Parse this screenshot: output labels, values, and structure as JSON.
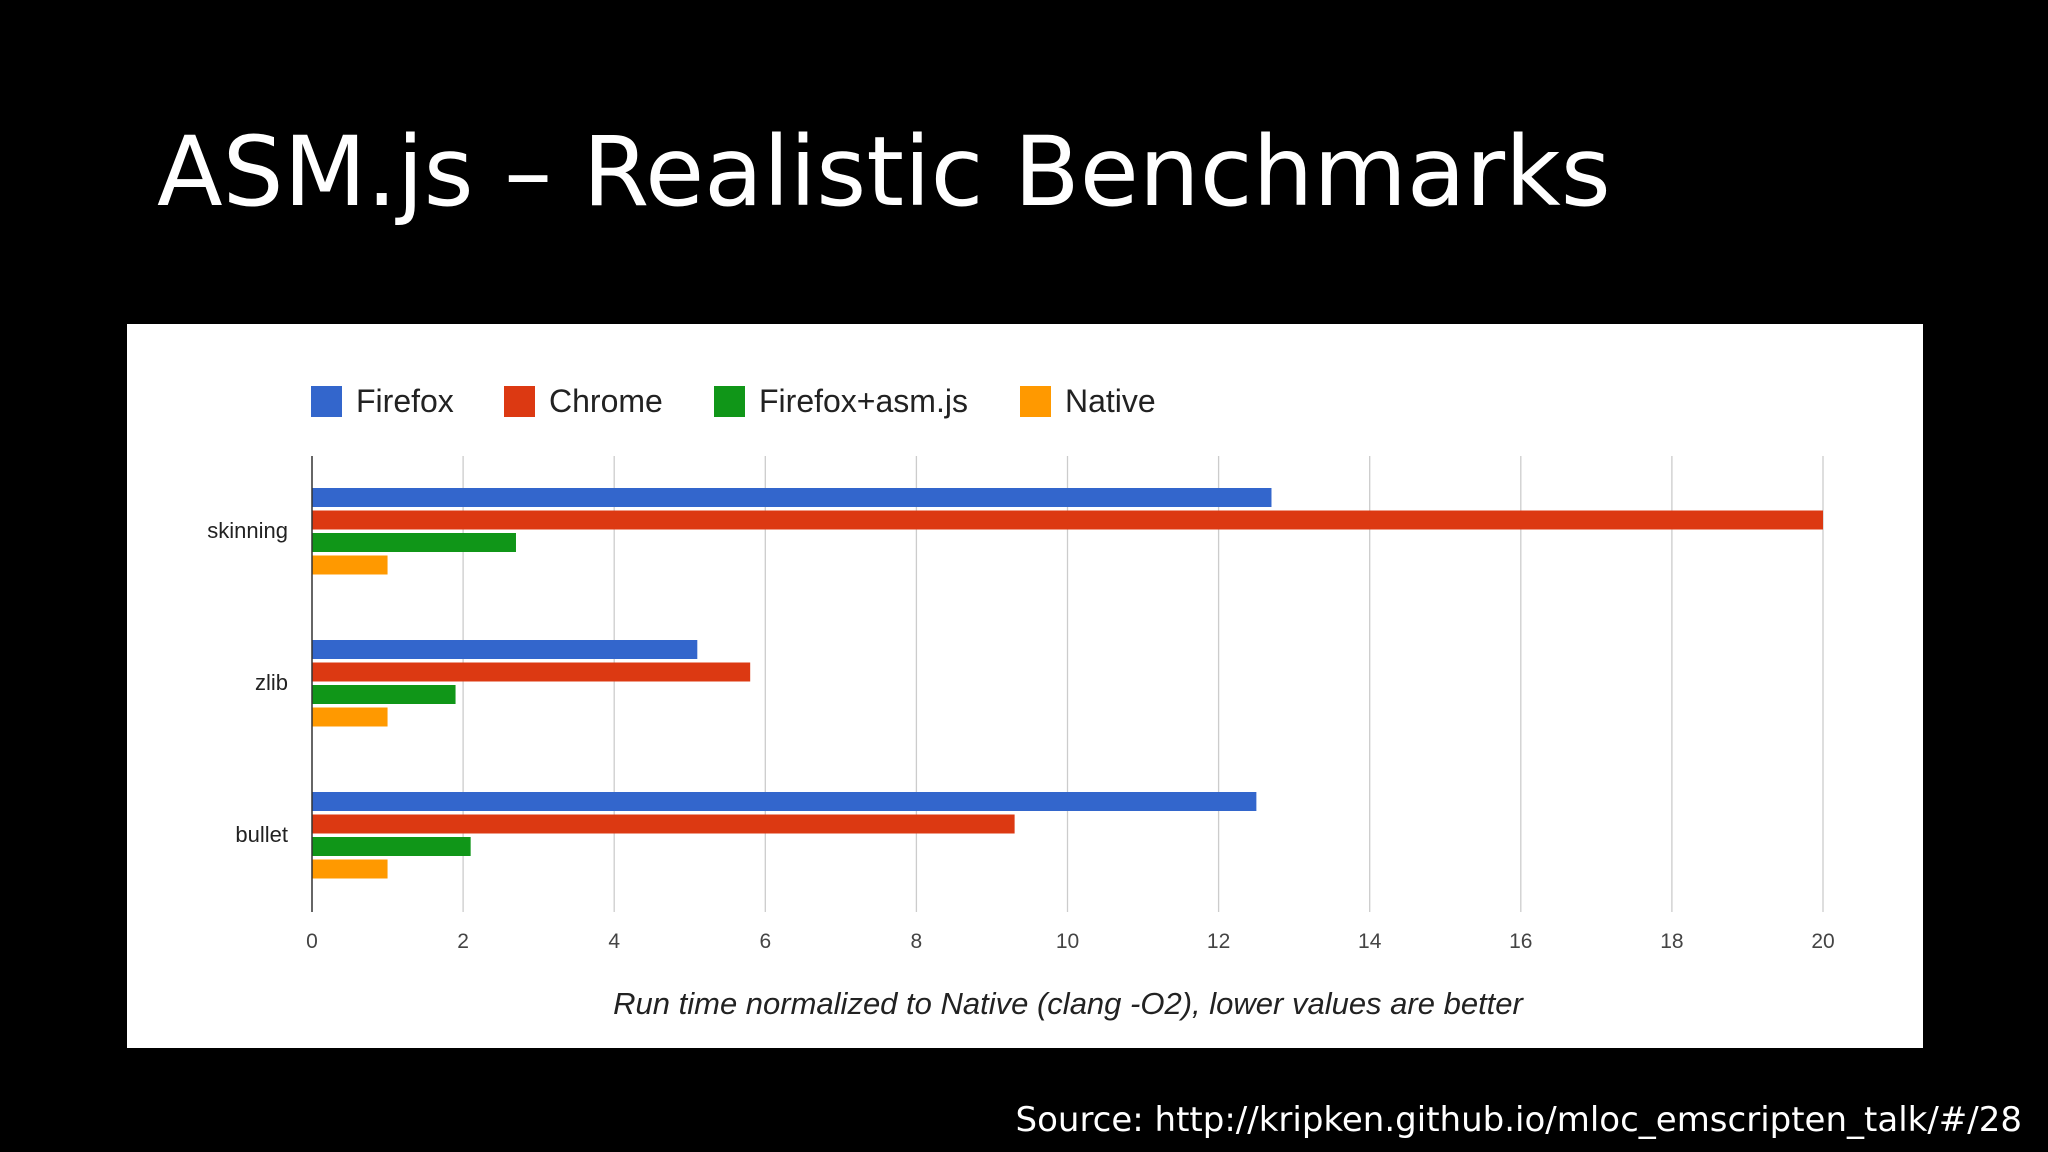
{
  "slide": {
    "title": "ASM.js – Realistic Benchmarks",
    "source": "Source: http://kripken.github.io/mloc_emscripten_talk/#/28"
  },
  "chart_data": {
    "type": "bar",
    "orientation": "horizontal",
    "title": "",
    "categories": [
      "skinning",
      "zlib",
      "bullet"
    ],
    "series": [
      {
        "name": "Firefox",
        "color": "#3366cc",
        "values": [
          12.7,
          5.1,
          12.5
        ]
      },
      {
        "name": "Chrome",
        "color": "#dc3912",
        "values": [
          20.0,
          5.8,
          9.3
        ]
      },
      {
        "name": "Firefox+asm.js",
        "color": "#109618",
        "values": [
          2.7,
          1.9,
          2.1
        ]
      },
      {
        "name": "Native",
        "color": "#ff9900",
        "values": [
          1.0,
          1.0,
          1.0
        ]
      }
    ],
    "xlabel": "Run time normalized to Native (clang -O2), lower values are better",
    "ylabel": "",
    "xlim": [
      0,
      20
    ],
    "xticks": [
      "0",
      "2",
      "4",
      "6",
      "8",
      "10",
      "12",
      "14",
      "16",
      "18",
      "20"
    ],
    "grid": true,
    "legend_position": "top-left"
  }
}
